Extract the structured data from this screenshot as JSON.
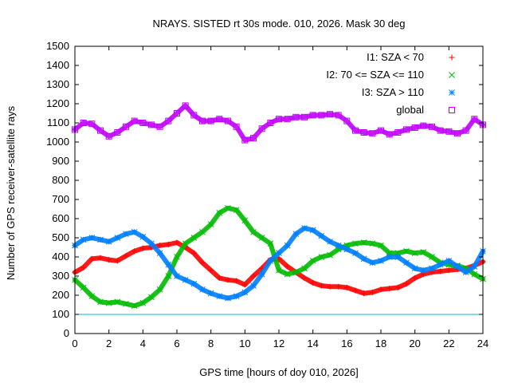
{
  "chart_data": {
    "type": "scatter",
    "title": "NRAYS. SISTED rt 30s mode. 010, 2026. Mask 30 deg",
    "xlabel": "GPS time [hours of doy 010, 2026]",
    "ylabel": "Number of GPS receiver-satellite rays",
    "xlim": [
      0,
      24
    ],
    "ylim": [
      0,
      1500
    ],
    "xticks": [
      "0",
      "2",
      "4",
      "6",
      "8",
      "10",
      "12",
      "14",
      "16",
      "18",
      "20",
      "22",
      "24"
    ],
    "yticks": [
      "0",
      "100",
      "200",
      "300",
      "400",
      "500",
      "600",
      "700",
      "800",
      "900",
      "1000",
      "1100",
      "1200",
      "1300",
      "1400",
      "1500"
    ],
    "grid": false,
    "legend_position": "top-right",
    "reference_line": {
      "y": 100,
      "color": "#00c0c0"
    },
    "series": [
      {
        "name": "I1: SZA < 70",
        "marker": "plus",
        "color": "#ff0000",
        "x": [
          0,
          0.5,
          1,
          1.5,
          2,
          2.5,
          3,
          3.5,
          4,
          4.5,
          5,
          5.5,
          6,
          6.5,
          7,
          7.5,
          8,
          8.5,
          9,
          9.5,
          10,
          10.5,
          11,
          11.5,
          12,
          12.5,
          13,
          13.5,
          14,
          14.5,
          15,
          15.5,
          16,
          16.5,
          17,
          17.5,
          18,
          18.5,
          19,
          19.5,
          20,
          20.5,
          21,
          21.5,
          22,
          22.5,
          23,
          23.5,
          24
        ],
        "values": [
          320,
          345,
          390,
          395,
          385,
          380,
          405,
          430,
          445,
          450,
          460,
          465,
          475,
          450,
          420,
          370,
          330,
          290,
          280,
          275,
          255,
          300,
          340,
          385,
          390,
          350,
          320,
          290,
          265,
          250,
          245,
          245,
          240,
          225,
          210,
          215,
          230,
          235,
          240,
          260,
          290,
          310,
          320,
          325,
          330,
          335,
          340,
          355,
          375
        ]
      },
      {
        "name": "I2: 70 <= SZA <= 110",
        "marker": "cross",
        "color": "#00bb00",
        "x": [
          0,
          0.5,
          1,
          1.5,
          2,
          2.5,
          3,
          3.5,
          4,
          4.5,
          5,
          5.5,
          6,
          6.5,
          7,
          7.5,
          8,
          8.5,
          9,
          9.5,
          10,
          10.5,
          11,
          11.5,
          12,
          12.5,
          13,
          13.5,
          14,
          14.5,
          15,
          15.5,
          16,
          16.5,
          17,
          17.5,
          18,
          18.5,
          19,
          19.5,
          20,
          20.5,
          21,
          21.5,
          22,
          22.5,
          23,
          23.5,
          24
        ],
        "values": [
          280,
          240,
          195,
          165,
          160,
          165,
          155,
          145,
          160,
          190,
          230,
          300,
          400,
          470,
          500,
          530,
          570,
          630,
          655,
          645,
          590,
          530,
          500,
          470,
          330,
          310,
          320,
          340,
          380,
          400,
          410,
          440,
          460,
          470,
          475,
          470,
          460,
          420,
          420,
          430,
          420,
          425,
          400,
          370,
          360,
          355,
          340,
          310,
          285
        ]
      },
      {
        "name": "I3: SZA > 110",
        "marker": "star",
        "color": "#0080ff",
        "x": [
          0,
          0.5,
          1,
          1.5,
          2,
          2.5,
          3,
          3.5,
          4,
          4.5,
          5,
          5.5,
          6,
          6.5,
          7,
          7.5,
          8,
          8.5,
          9,
          9.5,
          10,
          10.5,
          11,
          11.5,
          12,
          12.5,
          13,
          13.5,
          14,
          14.5,
          15,
          15.5,
          16,
          16.5,
          17,
          17.5,
          18,
          18.5,
          19,
          19.5,
          20,
          20.5,
          21,
          21.5,
          22,
          22.5,
          23,
          23.5,
          24
        ],
        "values": [
          460,
          490,
          500,
          490,
          480,
          500,
          520,
          530,
          505,
          470,
          420,
          360,
          300,
          280,
          260,
          230,
          210,
          195,
          185,
          195,
          215,
          250,
          310,
          380,
          420,
          460,
          520,
          550,
          540,
          510,
          480,
          460,
          440,
          420,
          390,
          370,
          380,
          400,
          400,
          370,
          340,
          330,
          340,
          360,
          380,
          350,
          320,
          350,
          430
        ]
      },
      {
        "name": "global",
        "marker": "square",
        "color": "#c000ff",
        "x": [
          0,
          0.5,
          1,
          1.5,
          2,
          2.5,
          3,
          3.5,
          4,
          4.5,
          5,
          5.5,
          6,
          6.5,
          7,
          7.5,
          8,
          8.5,
          9,
          9.5,
          10,
          10.5,
          11,
          11.5,
          12,
          12.5,
          13,
          13.5,
          14,
          14.5,
          15,
          15.5,
          16,
          16.5,
          17,
          17.5,
          18,
          18.5,
          19,
          19.5,
          20,
          20.5,
          21,
          21.5,
          22,
          22.5,
          23,
          23.5,
          24
        ],
        "values": [
          1065,
          1100,
          1095,
          1060,
          1030,
          1050,
          1080,
          1110,
          1100,
          1090,
          1080,
          1110,
          1150,
          1190,
          1140,
          1110,
          1110,
          1120,
          1110,
          1080,
          1010,
          1020,
          1070,
          1100,
          1120,
          1120,
          1130,
          1130,
          1140,
          1140,
          1145,
          1140,
          1110,
          1060,
          1050,
          1045,
          1060,
          1040,
          1050,
          1065,
          1075,
          1085,
          1080,
          1060,
          1055,
          1045,
          1060,
          1120,
          1090
        ]
      }
    ]
  }
}
